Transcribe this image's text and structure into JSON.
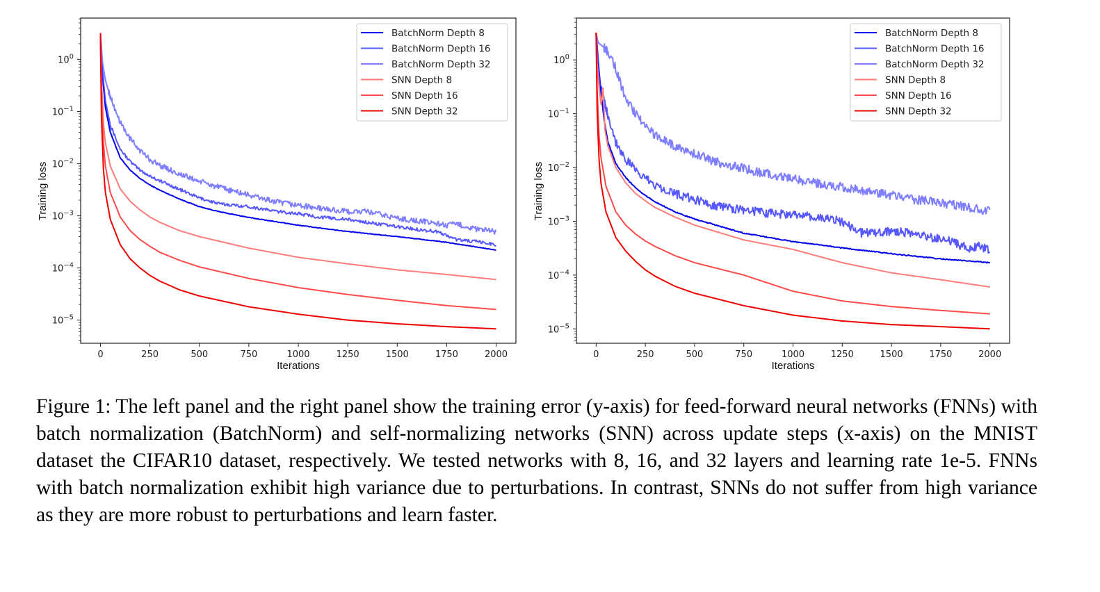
{
  "figure": {
    "caption": "Figure 1: The left panel and the right panel show the training error (y-axis) for feed-forward neural networks (FNNs) with batch normalization (BatchNorm) and self-normalizing networks (SNN) across update steps (x-axis) on the MNIST dataset the CIFAR10 dataset, respectively. We tested networks with 8, 16, and 32 layers and learning rate 1e-5. FNNs with batch normalization exhibit high variance due to perturbations. In contrast, SNNs do not suffer from high variance as they are more robust to perturbations and learn faster."
  },
  "chart_data": [
    {
      "type": "line",
      "panel": "left",
      "dataset": "MNIST",
      "title": "",
      "xlabel": "Iterations",
      "ylabel": "Training loss",
      "xscale": "linear",
      "yscale": "log",
      "xlim": [
        -100,
        2100
      ],
      "ylim": [
        3.6e-06,
        6.2
      ],
      "xticks": [
        0,
        250,
        500,
        750,
        1000,
        1250,
        1500,
        1750,
        2000
      ],
      "xtick_labels": [
        "0",
        "250",
        "500",
        "750",
        "1000",
        "1250",
        "1500",
        "1750",
        "2000"
      ],
      "yticks": [
        1,
        0.1,
        0.01,
        0.001,
        0.0001,
        1e-05
      ],
      "ytick_labels": [
        [
          "10",
          "0"
        ],
        [
          "10",
          "−1"
        ],
        [
          "10",
          "−2"
        ],
        [
          "10",
          "−3"
        ],
        [
          "10",
          "−4"
        ],
        [
          "10",
          "−5"
        ]
      ],
      "grid": false,
      "legend_position": "top-right",
      "series": [
        {
          "name": "BatchNorm Depth 8",
          "color": "#0000ee",
          "opacity": 1.0,
          "noise": 0.01,
          "x": [
            0,
            10,
            25,
            50,
            100,
            150,
            200,
            250,
            300,
            400,
            500,
            600,
            750,
            1000,
            1250,
            1500,
            1750,
            2000
          ],
          "y": [
            3.2,
            0.5,
            0.12,
            0.04,
            0.013,
            0.0075,
            0.0052,
            0.0039,
            0.0031,
            0.0021,
            0.0015,
            0.0012,
            0.00093,
            0.00066,
            0.0005,
            0.0004,
            0.00031,
            0.00022
          ]
        },
        {
          "name": "BatchNorm Depth 16",
          "color": "#3a3aff",
          "opacity": 0.85,
          "noise": 0.05,
          "x": [
            0,
            10,
            25,
            50,
            100,
            150,
            200,
            250,
            300,
            400,
            500,
            600,
            750,
            900,
            1000,
            1100,
            1250,
            1400,
            1500,
            1600,
            1700,
            1750,
            1800,
            1900,
            2000
          ],
          "y": [
            3.2,
            0.6,
            0.16,
            0.055,
            0.019,
            0.011,
            0.0075,
            0.0058,
            0.0047,
            0.0032,
            0.0022,
            0.0017,
            0.0015,
            0.0012,
            0.0011,
            0.00095,
            0.00085,
            0.0007,
            0.00062,
            0.00055,
            0.0005,
            0.00042,
            0.00035,
            0.00032,
            0.00028
          ]
        },
        {
          "name": "BatchNorm Depth 32",
          "color": "#7070ff",
          "opacity": 0.9,
          "noise": 0.09,
          "x": [
            0,
            10,
            25,
            50,
            100,
            150,
            200,
            250,
            300,
            400,
            500,
            600,
            750,
            900,
            1000,
            1100,
            1250,
            1350,
            1500,
            1600,
            1700,
            1750,
            1800,
            1900,
            2000
          ],
          "y": [
            3.2,
            0.9,
            0.4,
            0.19,
            0.062,
            0.03,
            0.018,
            0.012,
            0.0093,
            0.0063,
            0.0046,
            0.0035,
            0.0025,
            0.0018,
            0.0016,
            0.0014,
            0.0012,
            0.0012,
            0.0009,
            0.0008,
            0.00072,
            0.00065,
            0.0007,
            0.00055,
            0.0005
          ]
        },
        {
          "name": "SNN Depth 8",
          "color": "#ff7a7a",
          "opacity": 1.0,
          "noise": 0,
          "x": [
            0,
            5,
            15,
            25,
            50,
            100,
            150,
            200,
            250,
            300,
            400,
            500,
            750,
            1000,
            1250,
            1500,
            1750,
            2000
          ],
          "y": [
            3.2,
            0.45,
            0.06,
            0.025,
            0.009,
            0.0033,
            0.0019,
            0.0013,
            0.00095,
            0.00075,
            0.00052,
            0.0004,
            0.00024,
            0.00016,
            0.00012,
            9.2e-05,
            7.5e-05,
            6e-05
          ]
        },
        {
          "name": "SNN Depth 16",
          "color": "#ff4a4a",
          "opacity": 1.0,
          "noise": 0,
          "x": [
            0,
            5,
            15,
            25,
            50,
            100,
            150,
            200,
            250,
            300,
            400,
            500,
            750,
            1000,
            1250,
            1500,
            1750,
            2000
          ],
          "y": [
            3.2,
            0.2,
            0.025,
            0.009,
            0.0028,
            0.00095,
            0.00052,
            0.00035,
            0.00026,
            0.0002,
            0.00014,
            0.000105,
            6.3e-05,
            4.2e-05,
            3.1e-05,
            2.4e-05,
            1.9e-05,
            1.6e-05
          ]
        },
        {
          "name": "SNN Depth 32",
          "color": "#ee0000",
          "opacity": 1.0,
          "noise": 0,
          "x": [
            0,
            5,
            15,
            25,
            50,
            100,
            150,
            200,
            250,
            300,
            400,
            500,
            750,
            1000,
            1250,
            1500,
            1750,
            2000
          ],
          "y": [
            3.2,
            0.08,
            0.008,
            0.0028,
            0.00085,
            0.00028,
            0.00015,
            0.0001,
            7.2e-05,
            5.6e-05,
            3.8e-05,
            2.9e-05,
            1.8e-05,
            1.3e-05,
            1e-05,
            8.5e-06,
            7.5e-06,
            6.8e-06
          ]
        }
      ]
    },
    {
      "type": "line",
      "panel": "right",
      "dataset": "CIFAR10",
      "title": "",
      "xlabel": "Iterations",
      "ylabel": "Training loss",
      "xscale": "linear",
      "yscale": "log",
      "xlim": [
        -100,
        2100
      ],
      "ylim": [
        5.4e-06,
        6.0
      ],
      "xticks": [
        0,
        250,
        500,
        750,
        1000,
        1250,
        1500,
        1750,
        2000
      ],
      "xtick_labels": [
        "0",
        "250",
        "500",
        "750",
        "1000",
        "1250",
        "1500",
        "1750",
        "2000"
      ],
      "yticks": [
        1,
        0.1,
        0.01,
        0.001,
        0.0001,
        1e-05
      ],
      "ytick_labels": [
        [
          "10",
          "0"
        ],
        [
          "10",
          "−1"
        ],
        [
          "10",
          "−2"
        ],
        [
          "10",
          "−3"
        ],
        [
          "10",
          "−4"
        ],
        [
          "10",
          "−5"
        ]
      ],
      "grid": false,
      "legend_position": "top-right",
      "series": [
        {
          "name": "BatchNorm Depth 8",
          "color": "#0000ee",
          "opacity": 1.0,
          "noise": 0.015,
          "x": [
            0,
            10,
            25,
            40,
            60,
            100,
            150,
            200,
            250,
            300,
            400,
            500,
            750,
            1000,
            1250,
            1500,
            1750,
            2000
          ],
          "y": [
            3.2,
            1.0,
            0.25,
            0.08,
            0.03,
            0.012,
            0.0065,
            0.0042,
            0.003,
            0.0023,
            0.0015,
            0.0011,
            0.0006,
            0.00042,
            0.00032,
            0.00025,
            0.0002,
            0.00017
          ]
        },
        {
          "name": "BatchNorm Depth 16",
          "color": "#3a3aff",
          "opacity": 0.85,
          "noise": 0.14,
          "x": [
            0,
            10,
            20,
            30,
            50,
            75,
            100,
            150,
            200,
            250,
            300,
            400,
            500,
            600,
            750,
            900,
            1000,
            1100,
            1250,
            1350,
            1500,
            1600,
            1700,
            1800,
            1900,
            1950,
            2000
          ],
          "y": [
            3.2,
            1.1,
            0.35,
            0.3,
            0.13,
            0.06,
            0.03,
            0.014,
            0.009,
            0.0062,
            0.0048,
            0.0033,
            0.0025,
            0.002,
            0.0016,
            0.0014,
            0.0013,
            0.0012,
            0.001,
            0.0006,
            0.00065,
            0.0006,
            0.0005,
            0.00042,
            0.0003,
            0.00035,
            0.00028
          ]
        },
        {
          "name": "BatchNorm Depth 32",
          "color": "#7070ff",
          "opacity": 0.9,
          "noise": 0.14,
          "x": [
            0,
            10,
            25,
            50,
            75,
            100,
            125,
            150,
            200,
            250,
            300,
            400,
            500,
            600,
            750,
            900,
            1000,
            1100,
            1250,
            1400,
            1500,
            1600,
            1750,
            1900,
            2000
          ],
          "y": [
            3.2,
            2.1,
            1.9,
            1.6,
            1.2,
            0.7,
            0.35,
            0.2,
            0.1,
            0.06,
            0.04,
            0.025,
            0.018,
            0.013,
            0.0095,
            0.0072,
            0.0062,
            0.0052,
            0.0043,
            0.0035,
            0.003,
            0.0026,
            0.0022,
            0.0018,
            0.0015
          ]
        },
        {
          "name": "SNN Depth 8",
          "color": "#ff7a7a",
          "opacity": 1.0,
          "noise": 0,
          "x": [
            0,
            5,
            15,
            25,
            35,
            45,
            60,
            100,
            150,
            200,
            250,
            300,
            400,
            500,
            750,
            1000,
            1250,
            1500,
            1750,
            2000
          ],
          "y": [
            3.2,
            0.8,
            0.3,
            0.15,
            0.3,
            0.05,
            0.025,
            0.01,
            0.0052,
            0.0033,
            0.0024,
            0.0018,
            0.0012,
            0.00085,
            0.00045,
            0.0003,
            0.00017,
            0.00011,
            8.2e-05,
            6e-05
          ]
        },
        {
          "name": "SNN Depth 16",
          "color": "#ff4a4a",
          "opacity": 1.0,
          "noise": 0,
          "x": [
            0,
            5,
            15,
            25,
            50,
            100,
            150,
            200,
            250,
            300,
            400,
            500,
            750,
            1000,
            1250,
            1500,
            1750,
            2000
          ],
          "y": [
            3.2,
            0.3,
            0.04,
            0.015,
            0.0045,
            0.0015,
            0.00085,
            0.00058,
            0.00043,
            0.00034,
            0.00023,
            0.00017,
            0.0001,
            5e-05,
            3.3e-05,
            2.6e-05,
            2.2e-05,
            1.9e-05
          ]
        },
        {
          "name": "SNN Depth 32",
          "color": "#ee0000",
          "opacity": 1.0,
          "noise": 0,
          "x": [
            0,
            5,
            15,
            25,
            50,
            100,
            150,
            200,
            250,
            300,
            400,
            500,
            750,
            1000,
            1250,
            1500,
            1750,
            2000
          ],
          "y": [
            3.2,
            0.12,
            0.014,
            0.005,
            0.0015,
            0.0005,
            0.00028,
            0.00018,
            0.000125,
            9.5e-05,
            6.2e-05,
            4.6e-05,
            2.7e-05,
            1.8e-05,
            1.4e-05,
            1.2e-05,
            1.1e-05,
            1e-05
          ]
        }
      ]
    }
  ]
}
